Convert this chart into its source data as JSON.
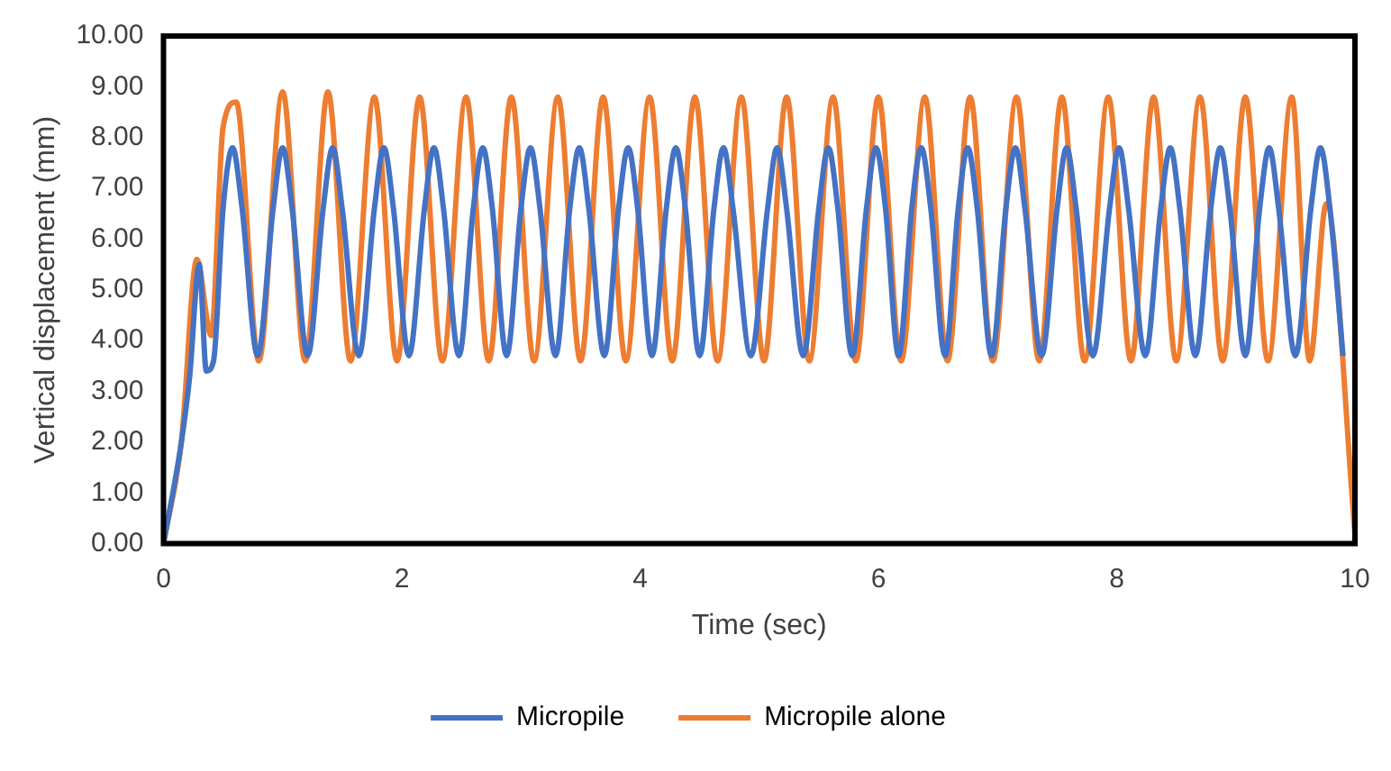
{
  "chart_data": {
    "type": "line",
    "xlabel": "Time (sec)",
    "ylabel": "Vertical displacement (mm)",
    "xlim": [
      0,
      10
    ],
    "xticks": [
      0,
      2,
      4,
      6,
      8,
      10
    ],
    "ylim": [
      0,
      10
    ],
    "yticks": [
      {
        "value": 0,
        "label": "0.00"
      },
      {
        "value": 1,
        "label": "1.00"
      },
      {
        "value": 2,
        "label": "2.00"
      },
      {
        "value": 3,
        "label": "3.00"
      },
      {
        "value": 4,
        "label": "4.00"
      },
      {
        "value": 5,
        "label": "5.00"
      },
      {
        "value": 6,
        "label": "6.00"
      },
      {
        "value": 7,
        "label": "7.00"
      },
      {
        "value": 8,
        "label": "8.00"
      },
      {
        "value": 9,
        "label": "9.00"
      },
      {
        "value": 10,
        "label": "10.00"
      }
    ],
    "grid": false,
    "legend": "bottom",
    "marker": "none",
    "line_style": "solid",
    "series": [
      {
        "name": "Micropile",
        "color": "#4472c4",
        "x": [
          0,
          0.15,
          0.22,
          0.3,
          0.36,
          0.42,
          0.5,
          0.58,
          0.66,
          0.79,
          0.92,
          1.0,
          1.08,
          1.21,
          1.34,
          1.42,
          1.5,
          1.64,
          1.77,
          1.85,
          1.93,
          2.06,
          2.19,
          2.27,
          2.35,
          2.48,
          2.6,
          2.68,
          2.76,
          2.88,
          3.0,
          3.08,
          3.16,
          3.29,
          3.41,
          3.49,
          3.57,
          3.7,
          3.82,
          3.9,
          3.98,
          4.1,
          4.22,
          4.3,
          4.38,
          4.5,
          4.62,
          4.7,
          4.78,
          4.93,
          5.07,
          5.15,
          5.23,
          5.37,
          5.5,
          5.58,
          5.66,
          5.78,
          5.9,
          5.98,
          6.06,
          6.17,
          6.28,
          6.36,
          6.44,
          6.56,
          6.67,
          6.75,
          6.83,
          6.95,
          7.07,
          7.15,
          7.23,
          7.37,
          7.5,
          7.58,
          7.66,
          7.8,
          7.94,
          8.02,
          8.1,
          8.24,
          8.37,
          8.45,
          8.53,
          8.66,
          8.79,
          8.87,
          8.95,
          9.08,
          9.2,
          9.28,
          9.36,
          9.5,
          9.63,
          9.71,
          9.79,
          9.9
        ],
        "values": [
          0,
          2.0,
          3.3,
          5.5,
          3.4,
          3.6,
          6.6,
          7.8,
          6.6,
          3.7,
          6.6,
          7.8,
          6.6,
          3.7,
          6.6,
          7.8,
          6.6,
          3.7,
          6.6,
          7.8,
          6.6,
          3.7,
          6.6,
          7.8,
          6.6,
          3.7,
          6.6,
          7.8,
          6.6,
          3.7,
          6.6,
          7.8,
          6.6,
          3.7,
          6.6,
          7.8,
          6.6,
          3.7,
          6.6,
          7.8,
          6.6,
          3.7,
          6.6,
          7.8,
          6.6,
          3.7,
          6.6,
          7.8,
          6.6,
          3.7,
          6.6,
          7.8,
          6.6,
          3.7,
          6.6,
          7.8,
          6.6,
          3.7,
          6.6,
          7.8,
          6.6,
          3.7,
          6.6,
          7.8,
          6.6,
          3.7,
          6.6,
          7.8,
          6.6,
          3.7,
          6.6,
          7.8,
          6.6,
          3.7,
          6.6,
          7.8,
          6.6,
          3.7,
          6.6,
          7.8,
          6.6,
          3.7,
          6.6,
          7.8,
          6.6,
          3.7,
          6.6,
          7.8,
          6.6,
          3.7,
          6.6,
          7.8,
          6.6,
          3.7,
          6.6,
          7.8,
          6.6,
          3.7
        ]
      },
      {
        "name": "Micropile alone",
        "color": "#ed7d31",
        "x": [
          0,
          0.15,
          0.28,
          0.4,
          0.5,
          0.61,
          0.8,
          1.0,
          1.19,
          1.38,
          1.57,
          1.77,
          1.96,
          2.15,
          2.34,
          2.54,
          2.73,
          2.92,
          3.11,
          3.31,
          3.5,
          3.69,
          3.88,
          4.08,
          4.27,
          4.46,
          4.65,
          4.85,
          5.04,
          5.23,
          5.42,
          5.62,
          5.81,
          6.0,
          6.19,
          6.39,
          6.58,
          6.77,
          6.96,
          7.16,
          7.35,
          7.54,
          7.73,
          7.93,
          8.12,
          8.31,
          8.5,
          8.7,
          8.89,
          9.08,
          9.27,
          9.47,
          9.62,
          9.76,
          10.0
        ],
        "values": [
          0,
          2.0,
          5.6,
          4.1,
          8.2,
          8.7,
          3.6,
          8.9,
          3.6,
          8.9,
          3.6,
          8.8,
          3.6,
          8.8,
          3.6,
          8.8,
          3.6,
          8.8,
          3.6,
          8.8,
          3.6,
          8.8,
          3.6,
          8.8,
          3.6,
          8.8,
          3.6,
          8.8,
          3.6,
          8.8,
          3.6,
          8.8,
          3.6,
          8.8,
          3.6,
          8.8,
          3.6,
          8.8,
          3.6,
          8.8,
          3.6,
          8.8,
          3.6,
          8.8,
          3.6,
          8.8,
          3.6,
          8.8,
          3.6,
          8.8,
          3.6,
          8.8,
          3.6,
          6.7,
          0.2
        ]
      }
    ]
  }
}
